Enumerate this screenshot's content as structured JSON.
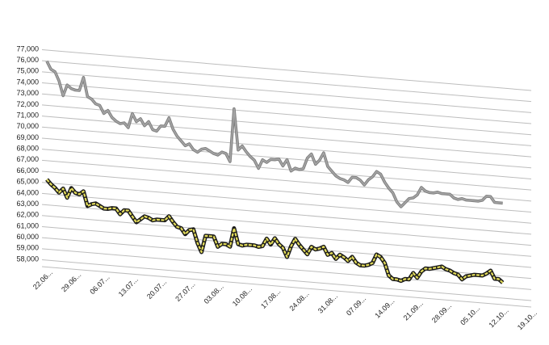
{
  "chart_data": {
    "type": "line",
    "categories": [
      "22.06...",
      null,
      null,
      null,
      null,
      null,
      null,
      "29.06...",
      null,
      null,
      null,
      null,
      null,
      null,
      "06.07...",
      null,
      null,
      null,
      null,
      null,
      null,
      "13.07...",
      null,
      null,
      null,
      null,
      null,
      null,
      "20.07...",
      null,
      null,
      null,
      null,
      null,
      null,
      "27.07...",
      null,
      null,
      null,
      null,
      null,
      null,
      "03.08...",
      null,
      null,
      null,
      null,
      null,
      null,
      "10.08...",
      null,
      null,
      null,
      null,
      null,
      null,
      "17.08...",
      null,
      null,
      null,
      null,
      null,
      null,
      "24.08...",
      null,
      null,
      null,
      null,
      null,
      null,
      "31.08...",
      null,
      null,
      null,
      null,
      null,
      null,
      "07.09...",
      null,
      null,
      null,
      null,
      null,
      null,
      "14.09...",
      null,
      null,
      null,
      null,
      null,
      null,
      "21.09...",
      null,
      null,
      null,
      null,
      null,
      null,
      "28.09...",
      null,
      null,
      null,
      null,
      null,
      null,
      "05.10...",
      null,
      null,
      null,
      null,
      null,
      null,
      "12.10...",
      null,
      null,
      null,
      null,
      null,
      null,
      "19.10..."
    ],
    "series": [
      {
        "color": "#a6a6a6",
        "edge_color": "#7f7f7f",
        "values": [
          76000,
          75300,
          75100,
          74300,
          73000,
          74000,
          73700,
          73600,
          73600,
          74800,
          73100,
          72900,
          72500,
          72400,
          71700,
          72000,
          71400,
          71100,
          70900,
          71000,
          70600,
          71900,
          71200,
          71500,
          70900,
          71300,
          70600,
          70500,
          71000,
          71000,
          71800,
          70800,
          70200,
          69800,
          69400,
          69600,
          69100,
          68900,
          69200,
          69300,
          69100,
          68900,
          68800,
          69100,
          69000,
          68300,
          73100,
          69400,
          69800,
          69300,
          68900,
          68600,
          67900,
          68700,
          68500,
          68800,
          68800,
          68900,
          68300,
          68900,
          67900,
          68200,
          68100,
          68200,
          69200,
          69600,
          68700,
          69100,
          69800,
          68600,
          68200,
          67800,
          67600,
          67500,
          67300,
          67800,
          67800,
          67600,
          67200,
          67700,
          68000,
          68500,
          68300,
          67600,
          67100,
          66700,
          65900,
          65500,
          65900,
          66300,
          66400,
          66700,
          67400,
          67100,
          67000,
          67000,
          67100,
          67000,
          67000,
          67000,
          66700,
          66600,
          66700,
          66600,
          66600,
          66600,
          66600,
          66700,
          67100,
          67100,
          66600,
          66600,
          66600,
          null,
          null,
          null,
          null,
          null,
          null,
          null
        ]
      },
      {
        "color": "#e3dc5a",
        "edge_color": "#1a1a1a",
        "values": [
          65300,
          64900,
          64600,
          64200,
          64600,
          63800,
          64700,
          64300,
          64200,
          64500,
          63200,
          63400,
          63500,
          63300,
          63100,
          63100,
          63200,
          63200,
          62700,
          63100,
          63100,
          62600,
          62100,
          62400,
          62700,
          62600,
          62400,
          62500,
          62500,
          62500,
          62900,
          62400,
          62000,
          61900,
          61400,
          61800,
          61900,
          60700,
          59900,
          61400,
          61400,
          61400,
          60500,
          60800,
          60800,
          60600,
          62300,
          60900,
          60800,
          60900,
          60900,
          60900,
          60800,
          60900,
          61600,
          61100,
          61700,
          61200,
          60900,
          60100,
          61100,
          61800,
          61300,
          60900,
          60500,
          61200,
          61000,
          61100,
          61300,
          60600,
          60800,
          60300,
          60700,
          60500,
          60200,
          60600,
          60100,
          59900,
          59900,
          60000,
          60200,
          61000,
          60800,
          60300,
          59200,
          58900,
          58900,
          58800,
          59000,
          59000,
          59600,
          59200,
          59800,
          60100,
          60100,
          60200,
          60300,
          60400,
          60200,
          60100,
          59900,
          59800,
          59400,
          59700,
          59800,
          59900,
          59900,
          59900,
          60100,
          60400,
          59700,
          59700,
          59400,
          null,
          null,
          null,
          null,
          null,
          null,
          null
        ]
      }
    ],
    "ylim": [
      58000,
      77000
    ],
    "yticks": [
      {
        "value": 58000,
        "label": "58,000"
      },
      {
        "value": 59000,
        "label": "59,000"
      },
      {
        "value": 60000,
        "label": "60,000"
      },
      {
        "value": 61000,
        "label": "61,000"
      },
      {
        "value": 62000,
        "label": "62,000"
      },
      {
        "value": 63000,
        "label": "63,000"
      },
      {
        "value": 64000,
        "label": "64,000"
      },
      {
        "value": 65000,
        "label": "65,000"
      },
      {
        "value": 66000,
        "label": "66,000"
      },
      {
        "value": 67000,
        "label": "67,000"
      },
      {
        "value": 68000,
        "label": "68,000"
      },
      {
        "value": 69000,
        "label": "69,000"
      },
      {
        "value": 70000,
        "label": "70,000"
      },
      {
        "value": 71000,
        "label": "71,000"
      },
      {
        "value": 72000,
        "label": "72,000"
      },
      {
        "value": 73000,
        "label": "73,000"
      },
      {
        "value": 74000,
        "label": "74,000"
      },
      {
        "value": 75000,
        "label": "75,000"
      },
      {
        "value": 76000,
        "label": "76,000"
      },
      {
        "value": 77000,
        "label": "77,000"
      }
    ],
    "grid": true
  }
}
